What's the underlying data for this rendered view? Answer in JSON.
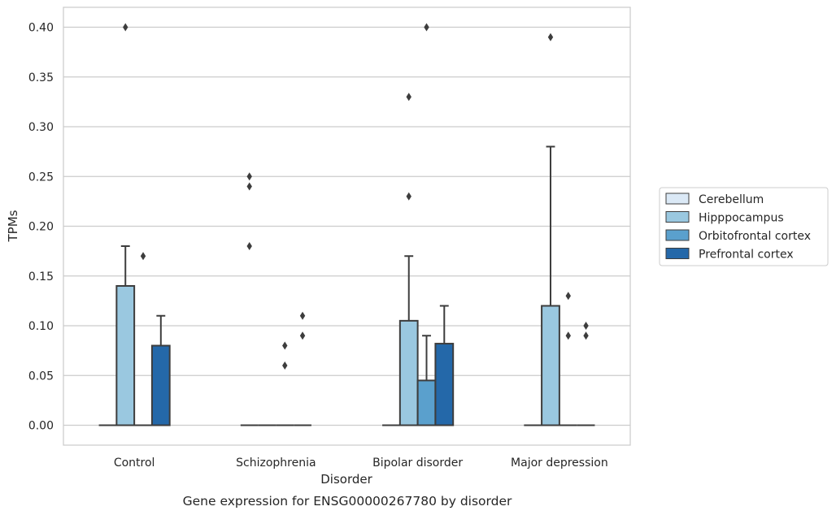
{
  "chart_data": {
    "type": "box",
    "caption": "Gene expression for ENSG00000267780 by disorder",
    "xlabel": "Disorder",
    "ylabel": "TPMs",
    "ylim": [
      -0.02,
      0.42
    ],
    "yticks": [
      0.0,
      0.05,
      0.1,
      0.15,
      0.2,
      0.25,
      0.3,
      0.35,
      0.4
    ],
    "ytick_labels": [
      "0.00",
      "0.05",
      "0.10",
      "0.15",
      "0.20",
      "0.25",
      "0.30",
      "0.35",
      "0.40"
    ],
    "categories": [
      "Control",
      "Schizophrenia",
      "Bipolar disorder",
      "Major depression"
    ],
    "grid": "horizontal",
    "legend_position": "right",
    "series": [
      {
        "name": "Cerebellum",
        "color": "#dbe9f6",
        "boxes": [
          {
            "q1": 0,
            "median": 0,
            "q3": 0,
            "whisker_low": 0,
            "whisker_high": 0,
            "fliers": []
          },
          {
            "q1": 0,
            "median": 0,
            "q3": 0,
            "whisker_low": 0,
            "whisker_high": 0,
            "fliers": [
              0.18,
              0.24,
              0.25
            ]
          },
          {
            "q1": 0,
            "median": 0,
            "q3": 0,
            "whisker_low": 0,
            "whisker_high": 0,
            "fliers": []
          },
          {
            "q1": 0,
            "median": 0,
            "q3": 0,
            "whisker_low": 0,
            "whisker_high": 0,
            "fliers": []
          }
        ]
      },
      {
        "name": "Hipppocampus",
        "color": "#9ac8e0",
        "boxes": [
          {
            "q1": 0,
            "median": 0,
            "q3": 0.14,
            "whisker_low": 0,
            "whisker_high": 0.18,
            "fliers": [
              0.4
            ]
          },
          {
            "q1": 0,
            "median": 0,
            "q3": 0,
            "whisker_low": 0,
            "whisker_high": 0,
            "fliers": []
          },
          {
            "q1": 0,
            "median": 0,
            "q3": 0.105,
            "whisker_low": 0,
            "whisker_high": 0.17,
            "fliers": [
              0.23,
              0.33
            ]
          },
          {
            "q1": 0,
            "median": 0,
            "q3": 0.12,
            "whisker_low": 0,
            "whisker_high": 0.28,
            "fliers": [
              0.39
            ]
          }
        ]
      },
      {
        "name": "Orbitofrontal cortex",
        "color": "#5aa0cd",
        "boxes": [
          {
            "q1": 0,
            "median": 0,
            "q3": 0,
            "whisker_low": 0,
            "whisker_high": 0,
            "fliers": [
              0.17
            ]
          },
          {
            "q1": 0,
            "median": 0,
            "q3": 0,
            "whisker_low": 0,
            "whisker_high": 0,
            "fliers": [
              0.06,
              0.08
            ]
          },
          {
            "q1": 0,
            "median": 0,
            "q3": 0.045,
            "whisker_low": 0,
            "whisker_high": 0.09,
            "fliers": [
              0.4
            ]
          },
          {
            "q1": 0,
            "median": 0,
            "q3": 0,
            "whisker_low": 0,
            "whisker_high": 0,
            "fliers": [
              0.09,
              0.13
            ]
          }
        ]
      },
      {
        "name": "Prefrontal cortex",
        "color": "#2468a9",
        "boxes": [
          {
            "q1": 0,
            "median": 0,
            "q3": 0.08,
            "whisker_low": 0,
            "whisker_high": 0.11,
            "fliers": []
          },
          {
            "q1": 0,
            "median": 0,
            "q3": 0,
            "whisker_low": 0,
            "whisker_high": 0,
            "fliers": [
              0.09,
              0.11
            ]
          },
          {
            "q1": 0,
            "median": 0,
            "q3": 0.082,
            "whisker_low": 0,
            "whisker_high": 0.12,
            "fliers": []
          },
          {
            "q1": 0,
            "median": 0,
            "q3": 0,
            "whisker_low": 0,
            "whisker_high": 0,
            "fliers": [
              0.09,
              0.1
            ]
          }
        ]
      }
    ]
  }
}
